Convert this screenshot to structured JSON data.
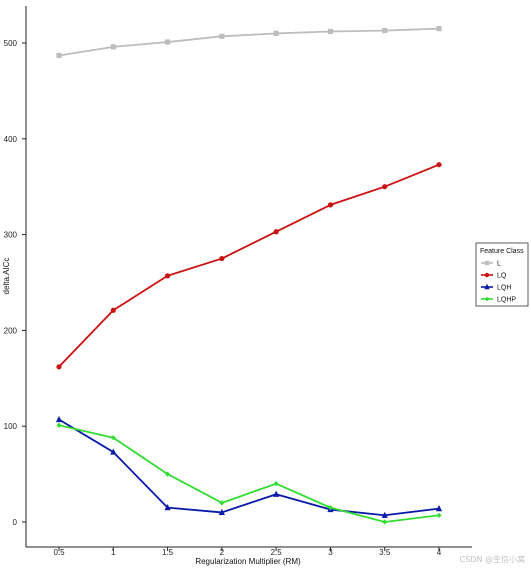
{
  "chart_data": {
    "type": "line",
    "x": [
      0.5,
      1,
      1.5,
      2,
      2.5,
      3,
      3.5,
      4
    ],
    "x_tick_labels": [
      "0.5",
      "1",
      "1.5",
      "2",
      "2.5",
      "3",
      "3.5",
      "4"
    ],
    "y_ticks": [
      0,
      100,
      200,
      300,
      400,
      500
    ],
    "xlabel": "Regularization Multiplier (RM)",
    "ylabel": "delta.AICc",
    "xlim": [
      0.2,
      4.3
    ],
    "ylim": [
      -20,
      540
    ],
    "grid": false,
    "legend_title": "Feature Class",
    "legend_position": "right",
    "series": [
      {
        "name": "L",
        "color": "#bdbdbd",
        "marker": "square",
        "values": [
          487,
          496,
          501,
          507,
          510,
          512,
          513,
          515
        ]
      },
      {
        "name": "LQ",
        "color": "#cc1111",
        "marker": "circle",
        "values": [
          162,
          221,
          257,
          275,
          303,
          331,
          350,
          373
        ]
      },
      {
        "name": "LQH",
        "color": "#0a1aa8",
        "marker": "triangle",
        "values": [
          107,
          73,
          15,
          10,
          29,
          13,
          7,
          14
        ]
      },
      {
        "name": "LQHP",
        "color": "#33dd33",
        "marker": "diamond",
        "values": [
          101,
          88,
          50,
          20,
          40,
          15,
          0,
          7
        ]
      }
    ]
  },
  "watermark": "CSDN @生信小窝"
}
